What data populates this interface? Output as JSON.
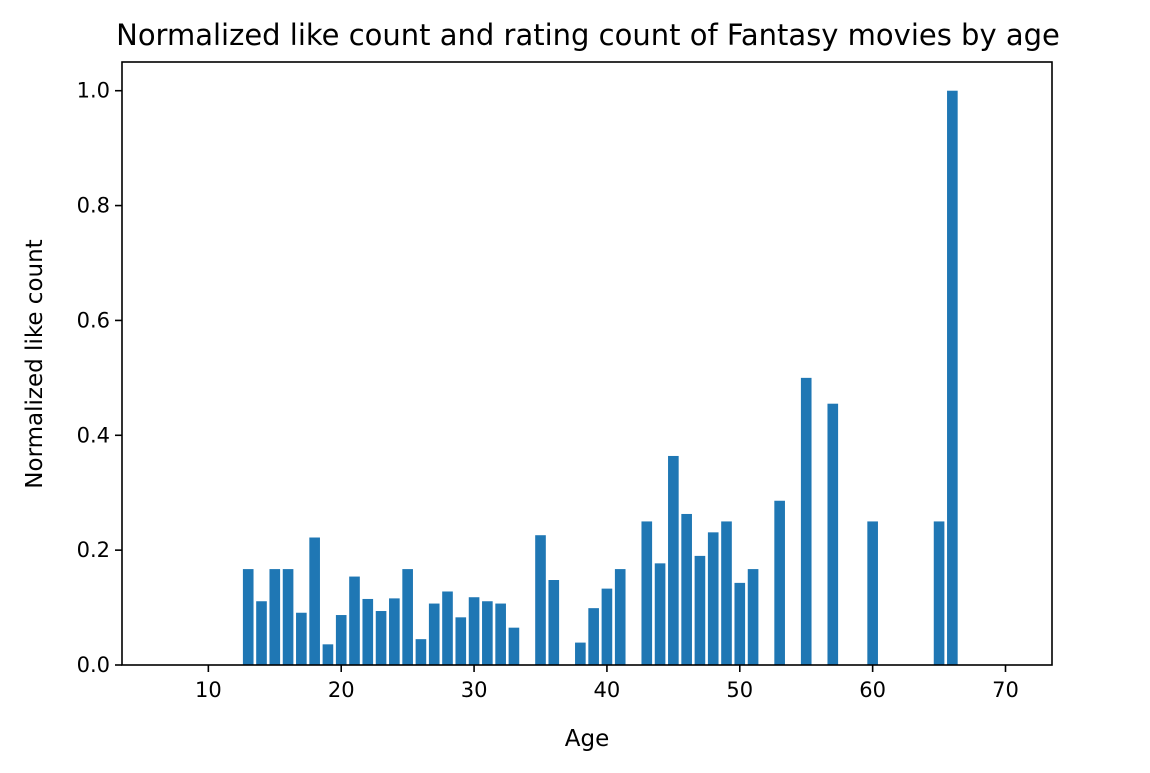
{
  "chart_data": {
    "type": "bar",
    "title": "Normalized like count and rating count of Fantasy movies by age",
    "xlabel": "Age",
    "ylabel": "Normalized like count",
    "xlim": [
      3.5,
      73.5
    ],
    "ylim": [
      0.0,
      1.05
    ],
    "xticks": [
      "10",
      "20",
      "30",
      "40",
      "50",
      "60",
      "70"
    ],
    "yticks": [
      "0.0",
      "0.2",
      "0.4",
      "0.6",
      "0.8",
      "1.0"
    ],
    "bar_color": "#1f77b4",
    "grid": false,
    "x": [
      13,
      14,
      15,
      16,
      17,
      18,
      19,
      20,
      21,
      22,
      23,
      24,
      25,
      26,
      27,
      28,
      29,
      30,
      31,
      32,
      33,
      35,
      36,
      38,
      39,
      40,
      41,
      43,
      44,
      45,
      46,
      47,
      48,
      49,
      50,
      51,
      53,
      55,
      57,
      60,
      65,
      66
    ],
    "values": [
      0.167,
      0.111,
      0.167,
      0.167,
      0.091,
      0.222,
      0.036,
      0.087,
      0.154,
      0.115,
      0.094,
      0.116,
      0.167,
      0.045,
      0.107,
      0.128,
      0.083,
      0.118,
      0.111,
      0.107,
      0.065,
      0.226,
      0.148,
      0.039,
      0.099,
      0.133,
      0.167,
      0.25,
      0.177,
      0.364,
      0.263,
      0.19,
      0.231,
      0.25,
      0.143,
      0.167,
      0.286,
      0.5,
      0.455,
      0.25,
      0.25,
      1.0
    ]
  }
}
